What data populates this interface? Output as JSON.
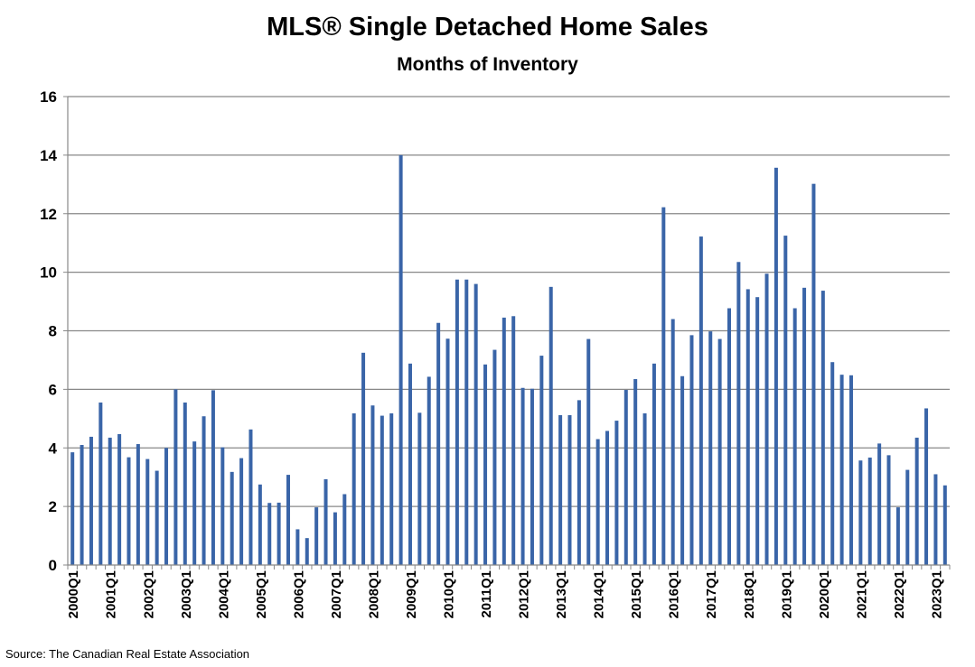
{
  "chart_data": {
    "type": "bar",
    "title": "MLS® Single Detached Home Sales",
    "subtitle": "Months of Inventory",
    "ylim": [
      0,
      16
    ],
    "yticks": [
      0,
      2,
      4,
      6,
      8,
      10,
      12,
      14,
      16
    ],
    "grid": true,
    "bar_color": "#3a65a8",
    "grid_color": "#888888",
    "x_tick_labels": [
      "2000Q1",
      "2001Q1",
      "2002Q1",
      "2003Q1",
      "2004Q1",
      "2005Q1",
      "2006Q1",
      "2007Q1",
      "2008Q1",
      "2009Q1",
      "2010Q1",
      "2011Q1",
      "2012Q1",
      "2013Q1",
      "2014Q1",
      "2015Q1",
      "2016Q1",
      "2017Q1",
      "2018Q1",
      "2019Q1",
      "2020Q1",
      "2021Q1",
      "2022Q1",
      "2023Q1"
    ],
    "categories": [
      "2000Q1",
      "2000Q2",
      "2000Q3",
      "2000Q4",
      "2001Q1",
      "2001Q2",
      "2001Q3",
      "2001Q4",
      "2002Q1",
      "2002Q2",
      "2002Q3",
      "2002Q4",
      "2003Q1",
      "2003Q2",
      "2003Q3",
      "2003Q4",
      "2004Q1",
      "2004Q2",
      "2004Q3",
      "2004Q4",
      "2005Q1",
      "2005Q2",
      "2005Q3",
      "2005Q4",
      "2006Q1",
      "2006Q2",
      "2006Q3",
      "2006Q4",
      "2007Q1",
      "2007Q2",
      "2007Q3",
      "2007Q4",
      "2008Q1",
      "2008Q2",
      "2008Q3",
      "2008Q4",
      "2009Q1",
      "2009Q2",
      "2009Q3",
      "2009Q4",
      "2010Q1",
      "2010Q2",
      "2010Q3",
      "2010Q4",
      "2011Q1",
      "2011Q2",
      "2011Q3",
      "2011Q4",
      "2012Q1",
      "2012Q2",
      "2012Q3",
      "2012Q4",
      "2013Q1",
      "2013Q2",
      "2013Q3",
      "2013Q4",
      "2014Q1",
      "2014Q2",
      "2014Q3",
      "2014Q4",
      "2015Q1",
      "2015Q2",
      "2015Q3",
      "2015Q4",
      "2016Q1",
      "2016Q2",
      "2016Q3",
      "2016Q4",
      "2017Q1",
      "2017Q2",
      "2017Q3",
      "2017Q4",
      "2018Q1",
      "2018Q2",
      "2018Q3",
      "2018Q4",
      "2019Q1",
      "2019Q2",
      "2019Q3",
      "2019Q4",
      "2020Q1",
      "2020Q2",
      "2020Q3",
      "2020Q4",
      "2021Q1",
      "2021Q2",
      "2021Q3",
      "2021Q4",
      "2022Q1",
      "2022Q2",
      "2022Q3",
      "2022Q4",
      "2023Q1",
      "2023Q2"
    ],
    "values": [
      3.85,
      4.1,
      4.38,
      5.55,
      4.35,
      4.47,
      3.68,
      4.13,
      3.62,
      3.22,
      4.0,
      6.0,
      5.55,
      4.22,
      5.08,
      5.97,
      4.02,
      3.18,
      3.65,
      4.63,
      2.75,
      2.12,
      2.13,
      3.08,
      1.22,
      0.92,
      1.97,
      2.93,
      1.8,
      2.42,
      5.18,
      7.25,
      5.45,
      5.1,
      5.18,
      14.0,
      6.88,
      5.2,
      6.43,
      8.27,
      7.73,
      9.75,
      9.75,
      9.6,
      6.85,
      7.35,
      8.45,
      8.5,
      6.05,
      6.02,
      7.15,
      9.5,
      5.12,
      5.12,
      5.63,
      7.72,
      4.3,
      4.58,
      4.93,
      5.98,
      6.35,
      5.18,
      6.88,
      12.22,
      8.4,
      6.45,
      7.85,
      11.22,
      7.98,
      7.72,
      8.77,
      10.35,
      9.42,
      9.15,
      9.95,
      13.57,
      11.25,
      8.77,
      9.47,
      13.02,
      9.37,
      6.93,
      6.5,
      6.48,
      3.57,
      3.67,
      4.15,
      3.75,
      1.97,
      3.25,
      4.35,
      5.35,
      3.1,
      2.72
    ]
  },
  "footer": {
    "source": "Source: The Canadian Real Estate Association"
  }
}
